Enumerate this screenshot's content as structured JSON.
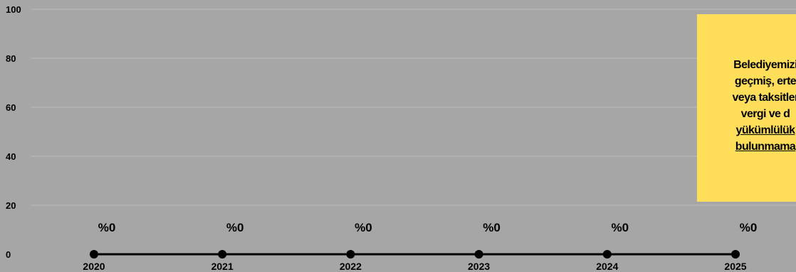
{
  "chart_data": {
    "type": "line",
    "categories": [
      "2020",
      "2021",
      "2022",
      "2023",
      "2024",
      "2025"
    ],
    "series": [
      {
        "values": [
          0,
          0,
          0,
          0,
          0,
          0
        ],
        "data_labels": [
          "%0",
          "%0",
          "%0",
          "%0",
          "%0",
          "%0"
        ]
      }
    ],
    "y_ticks": [
      "0",
      "20",
      "40",
      "60",
      "80",
      "100"
    ],
    "ylim": [
      0,
      100
    ],
    "grid": true,
    "line_color": "#000000",
    "background_color": "#a6a6a6"
  },
  "note": {
    "background_color": "#ffde59",
    "lines": [
      {
        "text": "Belediyemizi",
        "underline": false
      },
      {
        "text": "geçmiş, erte",
        "underline": false
      },
      {
        "text": "veya taksitler",
        "underline": false
      },
      {
        "text": "vergi ve d",
        "underline": false
      },
      {
        "text": "yükümlülük",
        "underline": true
      },
      {
        "text": "bulunmama",
        "underline": true
      }
    ]
  }
}
